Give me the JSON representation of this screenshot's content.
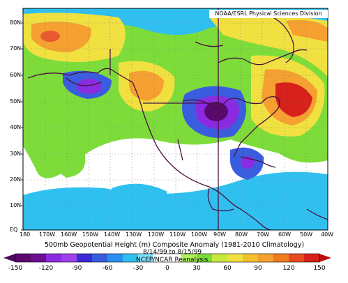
{
  "map": {
    "credit": "NOAA/ESRL Physical Sciences Division",
    "caption": "500mb Geopotential Height (m) Composite Anomaly (1981-2010 Climatology)",
    "subtitle_dates": "8/14/99 to 8/15/99",
    "subtitle_source": "NCEP/NCAR Reanalysis",
    "lat_labels": [
      "80N",
      "70N",
      "60N",
      "50N",
      "40N",
      "30N",
      "20N",
      "10N",
      "EQ"
    ],
    "lon_labels": [
      "180",
      "170W",
      "160W",
      "150W",
      "140W",
      "130W",
      "120W",
      "110W",
      "100W",
      "90W",
      "80W",
      "70W",
      "60W",
      "50W",
      "40W"
    ],
    "colorbar_ticks": [
      "-150",
      "-120",
      "-90",
      "-60",
      "-30",
      "0",
      "30",
      "60",
      "90",
      "120",
      "150"
    ]
  },
  "colors": {
    "strong_neg": "#5a0a6e",
    "neg": "#8a2be2",
    "mid_neg": "#3a5de0",
    "light_neg": "#30c0f0",
    "neutral": "#ffffff",
    "light_pos": "#7ddc3a",
    "pos": "#f0e040",
    "mid_pos": "#f5a030",
    "strong_pos": "#d8201a"
  }
}
